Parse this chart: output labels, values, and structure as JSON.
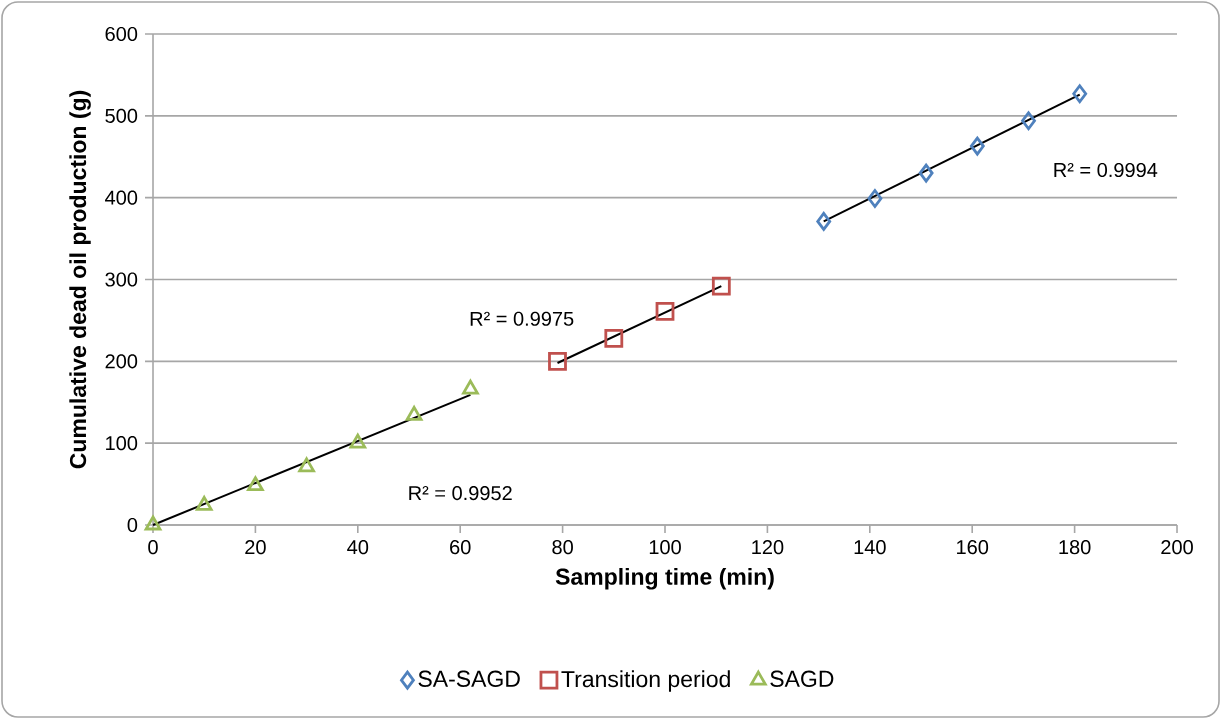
{
  "chart_data": {
    "type": "scatter",
    "xlabel": "Sampling time (min)",
    "ylabel": "Cumulative dead oil production (g)",
    "xlim": [
      0,
      200
    ],
    "xticks": [
      0,
      20,
      40,
      60,
      80,
      100,
      120,
      140,
      160,
      180,
      200
    ],
    "ylim": [
      0,
      600
    ],
    "yticks": [
      0,
      100,
      200,
      300,
      400,
      500,
      600
    ],
    "grid": "y",
    "legend": "bottom",
    "series": [
      {
        "name": "SA-SAGD",
        "color": "#4f81bd",
        "marker": "diamond",
        "x": [
          131,
          141,
          151,
          161,
          171,
          181
        ],
        "values": [
          371,
          399,
          430,
          463,
          494,
          527
        ]
      },
      {
        "name": "Transition period",
        "color": "#c0504d",
        "marker": "square",
        "x": [
          79,
          90,
          100,
          111
        ],
        "values": [
          200,
          228,
          261,
          292
        ]
      },
      {
        "name": "SAGD",
        "color": "#9bbb59",
        "marker": "triangle",
        "x": [
          0,
          10,
          20,
          30,
          40,
          51,
          62
        ],
        "values": [
          0,
          24,
          48,
          71,
          100,
          134,
          166
        ]
      },
      {
        "type": "line",
        "color": "#000000",
        "marker": "none",
        "x": [
          131,
          181
        ],
        "values": [
          371,
          526
        ]
      },
      {
        "type": "line",
        "color": "#000000",
        "marker": "none",
        "x": [
          79,
          111
        ],
        "values": [
          198,
          292
        ]
      },
      {
        "type": "line",
        "color": "#000000",
        "marker": "none",
        "x": [
          0,
          62
        ],
        "values": [
          0,
          159
        ]
      }
    ],
    "annotations": [
      "R² = 0.9994",
      "R² = 0.9975",
      "R² = 0.9952"
    ]
  }
}
